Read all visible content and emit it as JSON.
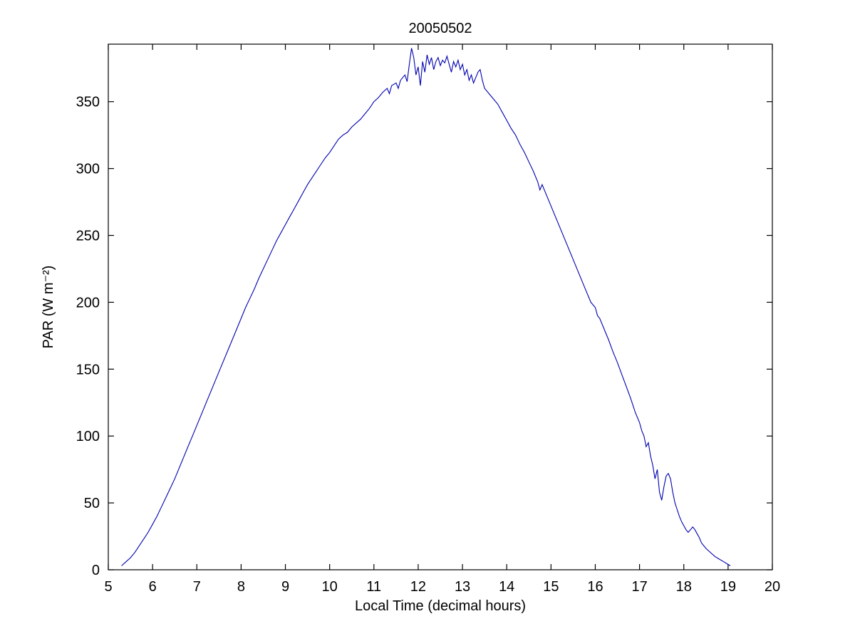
{
  "chart_data": {
    "type": "line",
    "title": "20050502",
    "xlabel": "Local Time (decimal hours)",
    "ylabel": "PAR (W m⁻²)",
    "xlim": [
      5,
      20
    ],
    "ylim": [
      0,
      393
    ],
    "xticks": [
      5,
      6,
      7,
      8,
      9,
      10,
      11,
      12,
      13,
      14,
      15,
      16,
      17,
      18,
      19,
      20
    ],
    "yticks": [
      0,
      50,
      100,
      150,
      200,
      250,
      300,
      350
    ],
    "grid": false,
    "legend": "none",
    "line_color": "#0000B0",
    "background_color": "#ffffff",
    "series_name": "PAR",
    "points": [
      [
        5.3,
        3
      ],
      [
        5.4,
        6
      ],
      [
        5.5,
        9
      ],
      [
        5.6,
        13
      ],
      [
        5.7,
        18
      ],
      [
        5.8,
        23
      ],
      [
        5.9,
        28
      ],
      [
        6.0,
        34
      ],
      [
        6.1,
        40
      ],
      [
        6.2,
        47
      ],
      [
        6.3,
        54
      ],
      [
        6.4,
        61
      ],
      [
        6.5,
        68
      ],
      [
        6.6,
        76
      ],
      [
        6.7,
        84
      ],
      [
        6.8,
        92
      ],
      [
        6.9,
        100
      ],
      [
        7.0,
        108
      ],
      [
        7.1,
        116
      ],
      [
        7.2,
        124
      ],
      [
        7.3,
        132
      ],
      [
        7.4,
        140
      ],
      [
        7.5,
        148
      ],
      [
        7.6,
        156
      ],
      [
        7.7,
        164
      ],
      [
        7.8,
        172
      ],
      [
        7.9,
        180
      ],
      [
        8.0,
        188
      ],
      [
        8.1,
        196
      ],
      [
        8.2,
        203
      ],
      [
        8.3,
        210
      ],
      [
        8.4,
        218
      ],
      [
        8.5,
        225
      ],
      [
        8.6,
        232
      ],
      [
        8.7,
        239
      ],
      [
        8.8,
        246
      ],
      [
        8.9,
        252
      ],
      [
        9.0,
        258
      ],
      [
        9.1,
        264
      ],
      [
        9.2,
        270
      ],
      [
        9.3,
        276
      ],
      [
        9.4,
        282
      ],
      [
        9.5,
        288
      ],
      [
        9.6,
        293
      ],
      [
        9.7,
        298
      ],
      [
        9.8,
        303
      ],
      [
        9.9,
        308
      ],
      [
        10.0,
        312
      ],
      [
        10.1,
        317
      ],
      [
        10.2,
        322
      ],
      [
        10.3,
        325
      ],
      [
        10.4,
        327
      ],
      [
        10.5,
        331
      ],
      [
        10.6,
        334
      ],
      [
        10.7,
        337
      ],
      [
        10.8,
        341
      ],
      [
        10.9,
        345
      ],
      [
        11.0,
        350
      ],
      [
        11.1,
        353
      ],
      [
        11.2,
        357
      ],
      [
        11.3,
        360
      ],
      [
        11.35,
        356
      ],
      [
        11.4,
        362
      ],
      [
        11.5,
        364
      ],
      [
        11.55,
        360
      ],
      [
        11.6,
        366
      ],
      [
        11.7,
        370
      ],
      [
        11.75,
        365
      ],
      [
        11.8,
        378
      ],
      [
        11.85,
        390
      ],
      [
        11.9,
        383
      ],
      [
        11.95,
        370
      ],
      [
        12.0,
        376
      ],
      [
        12.05,
        362
      ],
      [
        12.1,
        380
      ],
      [
        12.15,
        372
      ],
      [
        12.2,
        385
      ],
      [
        12.25,
        378
      ],
      [
        12.3,
        383
      ],
      [
        12.35,
        374
      ],
      [
        12.4,
        380
      ],
      [
        12.45,
        383
      ],
      [
        12.5,
        377
      ],
      [
        12.55,
        381
      ],
      [
        12.6,
        379
      ],
      [
        12.65,
        384
      ],
      [
        12.7,
        378
      ],
      [
        12.75,
        372
      ],
      [
        12.8,
        380
      ],
      [
        12.85,
        376
      ],
      [
        12.9,
        381
      ],
      [
        12.95,
        374
      ],
      [
        13.0,
        378
      ],
      [
        13.05,
        370
      ],
      [
        13.1,
        374
      ],
      [
        13.15,
        366
      ],
      [
        13.2,
        370
      ],
      [
        13.25,
        364
      ],
      [
        13.3,
        368
      ],
      [
        13.35,
        372
      ],
      [
        13.4,
        374
      ],
      [
        13.45,
        366
      ],
      [
        13.5,
        360
      ],
      [
        13.6,
        356
      ],
      [
        13.7,
        352
      ],
      [
        13.8,
        348
      ],
      [
        13.9,
        342
      ],
      [
        14.0,
        336
      ],
      [
        14.1,
        330
      ],
      [
        14.2,
        325
      ],
      [
        14.3,
        318
      ],
      [
        14.4,
        312
      ],
      [
        14.5,
        305
      ],
      [
        14.6,
        298
      ],
      [
        14.7,
        290
      ],
      [
        14.75,
        284
      ],
      [
        14.8,
        288
      ],
      [
        14.9,
        280
      ],
      [
        15.0,
        272
      ],
      [
        15.1,
        264
      ],
      [
        15.2,
        256
      ],
      [
        15.3,
        248
      ],
      [
        15.4,
        240
      ],
      [
        15.5,
        232
      ],
      [
        15.6,
        224
      ],
      [
        15.7,
        216
      ],
      [
        15.8,
        208
      ],
      [
        15.9,
        200
      ],
      [
        16.0,
        196
      ],
      [
        16.05,
        190
      ],
      [
        16.1,
        188
      ],
      [
        16.2,
        180
      ],
      [
        16.3,
        172
      ],
      [
        16.4,
        163
      ],
      [
        16.5,
        155
      ],
      [
        16.6,
        146
      ],
      [
        16.7,
        137
      ],
      [
        16.8,
        128
      ],
      [
        16.9,
        118
      ],
      [
        17.0,
        110
      ],
      [
        17.05,
        104
      ],
      [
        17.1,
        100
      ],
      [
        17.15,
        92
      ],
      [
        17.2,
        95
      ],
      [
        17.25,
        85
      ],
      [
        17.3,
        78
      ],
      [
        17.35,
        68
      ],
      [
        17.4,
        75
      ],
      [
        17.45,
        58
      ],
      [
        17.5,
        52
      ],
      [
        17.55,
        62
      ],
      [
        17.6,
        70
      ],
      [
        17.65,
        72
      ],
      [
        17.7,
        68
      ],
      [
        17.75,
        58
      ],
      [
        17.8,
        50
      ],
      [
        17.85,
        45
      ],
      [
        17.9,
        40
      ],
      [
        17.95,
        36
      ],
      [
        18.0,
        33
      ],
      [
        18.05,
        30
      ],
      [
        18.1,
        28
      ],
      [
        18.15,
        30
      ],
      [
        18.2,
        32
      ],
      [
        18.25,
        30
      ],
      [
        18.3,
        27
      ],
      [
        18.35,
        24
      ],
      [
        18.4,
        20
      ],
      [
        18.5,
        16
      ],
      [
        18.6,
        13
      ],
      [
        18.7,
        10
      ],
      [
        18.8,
        8
      ],
      [
        18.9,
        6
      ],
      [
        19.0,
        4
      ],
      [
        19.05,
        3
      ]
    ]
  }
}
